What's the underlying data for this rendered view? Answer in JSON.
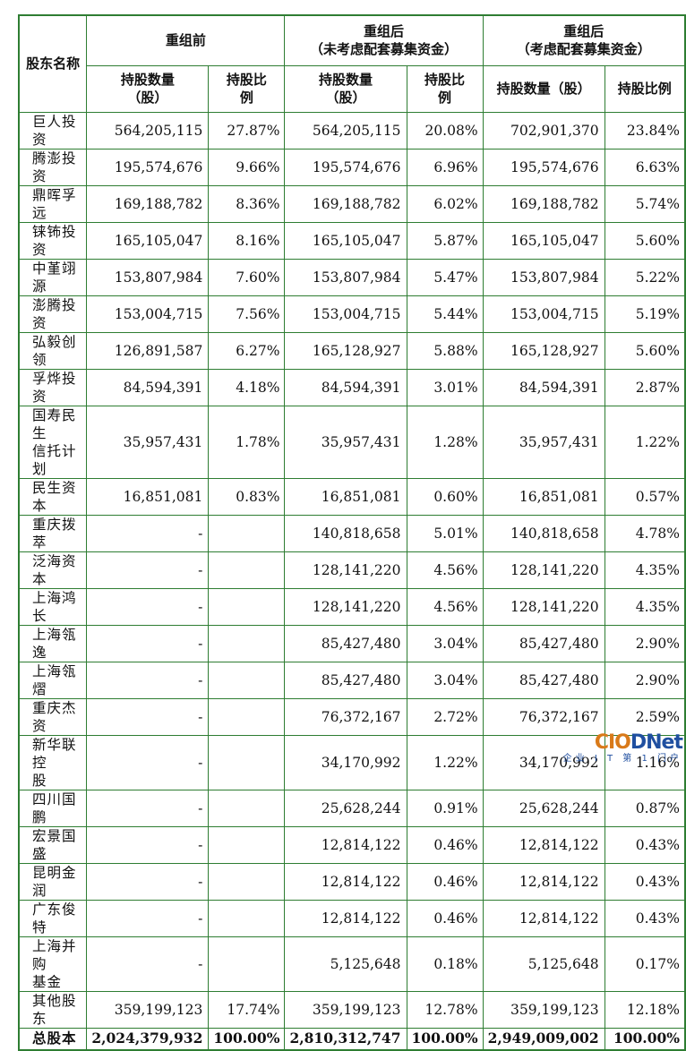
{
  "header": {
    "shareholder": "股东名称",
    "before": "重组前",
    "after_no": [
      "重组后",
      "（未考虑配套募集资金）"
    ],
    "after_with": [
      "重组后",
      "（考虑配套募集资金）"
    ],
    "qty_two_line": [
      "持股数量",
      "（股）"
    ],
    "ratio_two_line": [
      "持股比",
      "例"
    ],
    "qty_one_line": "持股数量（股）",
    "ratio_one_line": "持股比例"
  },
  "rows": [
    {
      "name": [
        "巨人投资"
      ],
      "b_qty": "564,205,115",
      "b_pct": "27.87%",
      "a1_qty": "564,205,115",
      "a1_pct": "20.08%",
      "a2_qty": "702,901,370",
      "a2_pct": "23.84%"
    },
    {
      "name": [
        "腾澎投资"
      ],
      "b_qty": "195,574,676",
      "b_pct": "9.66%",
      "a1_qty": "195,574,676",
      "a1_pct": "6.96%",
      "a2_qty": "195,574,676",
      "a2_pct": "6.63%"
    },
    {
      "name": [
        "鼎晖孚远"
      ],
      "b_qty": "169,188,782",
      "b_pct": "8.36%",
      "a1_qty": "169,188,782",
      "a1_pct": "6.02%",
      "a2_qty": "169,188,782",
      "a2_pct": "5.74%"
    },
    {
      "name": [
        "铼钸投资"
      ],
      "b_qty": "165,105,047",
      "b_pct": "8.16%",
      "a1_qty": "165,105,047",
      "a1_pct": "5.87%",
      "a2_qty": "165,105,047",
      "a2_pct": "5.60%"
    },
    {
      "name": [
        "中堇翊源"
      ],
      "b_qty": "153,807,984",
      "b_pct": "7.60%",
      "a1_qty": "153,807,984",
      "a1_pct": "5.47%",
      "a2_qty": "153,807,984",
      "a2_pct": "5.22%"
    },
    {
      "name": [
        "澎腾投资"
      ],
      "b_qty": "153,004,715",
      "b_pct": "7.56%",
      "a1_qty": "153,004,715",
      "a1_pct": "5.44%",
      "a2_qty": "153,004,715",
      "a2_pct": "5.19%"
    },
    {
      "name": [
        "弘毅创领"
      ],
      "b_qty": "126,891,587",
      "b_pct": "6.27%",
      "a1_qty": "165,128,927",
      "a1_pct": "5.88%",
      "a2_qty": "165,128,927",
      "a2_pct": "5.60%"
    },
    {
      "name": [
        "孚烨投资"
      ],
      "b_qty": "84,594,391",
      "b_pct": "4.18%",
      "a1_qty": "84,594,391",
      "a1_pct": "3.01%",
      "a2_qty": "84,594,391",
      "a2_pct": "2.87%"
    },
    {
      "name": [
        "国寿民生",
        "信托计划"
      ],
      "b_qty": "35,957,431",
      "b_pct": "1.78%",
      "a1_qty": "35,957,431",
      "a1_pct": "1.28%",
      "a2_qty": "35,957,431",
      "a2_pct": "1.22%"
    },
    {
      "name": [
        "民生资本"
      ],
      "b_qty": "16,851,081",
      "b_pct": "0.83%",
      "a1_qty": "16,851,081",
      "a1_pct": "0.60%",
      "a2_qty": "16,851,081",
      "a2_pct": "0.57%"
    },
    {
      "name": [
        "重庆拨萃"
      ],
      "b_qty": "-",
      "b_pct": "",
      "a1_qty": "140,818,658",
      "a1_pct": "5.01%",
      "a2_qty": "140,818,658",
      "a2_pct": "4.78%"
    },
    {
      "name": [
        "泛海资本"
      ],
      "b_qty": "-",
      "b_pct": "",
      "a1_qty": "128,141,220",
      "a1_pct": "4.56%",
      "a2_qty": "128,141,220",
      "a2_pct": "4.35%"
    },
    {
      "name": [
        "上海鸿长"
      ],
      "b_qty": "-",
      "b_pct": "",
      "a1_qty": "128,141,220",
      "a1_pct": "4.56%",
      "a2_qty": "128,141,220",
      "a2_pct": "4.35%"
    },
    {
      "name": [
        "上海瓴逸"
      ],
      "b_qty": "-",
      "b_pct": "",
      "a1_qty": "85,427,480",
      "a1_pct": "3.04%",
      "a2_qty": "85,427,480",
      "a2_pct": "2.90%"
    },
    {
      "name": [
        "上海瓴熠"
      ],
      "b_qty": "-",
      "b_pct": "",
      "a1_qty": "85,427,480",
      "a1_pct": "3.04%",
      "a2_qty": "85,427,480",
      "a2_pct": "2.90%"
    },
    {
      "name": [
        "重庆杰资"
      ],
      "b_qty": "-",
      "b_pct": "",
      "a1_qty": "76,372,167",
      "a1_pct": "2.72%",
      "a2_qty": "76,372,167",
      "a2_pct": "2.59%"
    },
    {
      "name": [
        "新华联控",
        "股"
      ],
      "b_qty": "-",
      "b_pct": "",
      "a1_qty": "34,170,992",
      "a1_pct": "1.22%",
      "a2_qty": "34,170,992",
      "a2_pct": "1.16%"
    },
    {
      "name": [
        "四川国鹏"
      ],
      "b_qty": "-",
      "b_pct": "",
      "a1_qty": "25,628,244",
      "a1_pct": "0.91%",
      "a2_qty": "25,628,244",
      "a2_pct": "0.87%"
    },
    {
      "name": [
        "宏景国盛"
      ],
      "b_qty": "-",
      "b_pct": "",
      "a1_qty": "12,814,122",
      "a1_pct": "0.46%",
      "a2_qty": "12,814,122",
      "a2_pct": "0.43%"
    },
    {
      "name": [
        "昆明金润"
      ],
      "b_qty": "-",
      "b_pct": "",
      "a1_qty": "12,814,122",
      "a1_pct": "0.46%",
      "a2_qty": "12,814,122",
      "a2_pct": "0.43%"
    },
    {
      "name": [
        "广东俊特"
      ],
      "b_qty": "-",
      "b_pct": "",
      "a1_qty": "12,814,122",
      "a1_pct": "0.46%",
      "a2_qty": "12,814,122",
      "a2_pct": "0.43%"
    },
    {
      "name": [
        "上海并购",
        "基金"
      ],
      "b_qty": "-",
      "b_pct": "",
      "a1_qty": "5,125,648",
      "a1_pct": "0.18%",
      "a2_qty": "5,125,648",
      "a2_pct": "0.17%"
    },
    {
      "name": [
        "其他股东"
      ],
      "b_qty": "359,199,123",
      "b_pct": "17.74%",
      "a1_qty": "359,199,123",
      "a1_pct": "12.78%",
      "a2_qty": "359,199,123",
      "a2_pct": "12.18%"
    }
  ],
  "total": {
    "name": "总股本",
    "b_qty": "2,024,379,932",
    "b_pct": "100.00%",
    "a1_qty": "2,810,312,747",
    "a1_pct": "100.00%",
    "a2_qty": "2,949,009,002",
    "a2_pct": "100.00%"
  },
  "watermark": {
    "logo_a": "CIO",
    "logo_b": "DNet",
    "slogan": "企业 I T 第 1 门户"
  }
}
